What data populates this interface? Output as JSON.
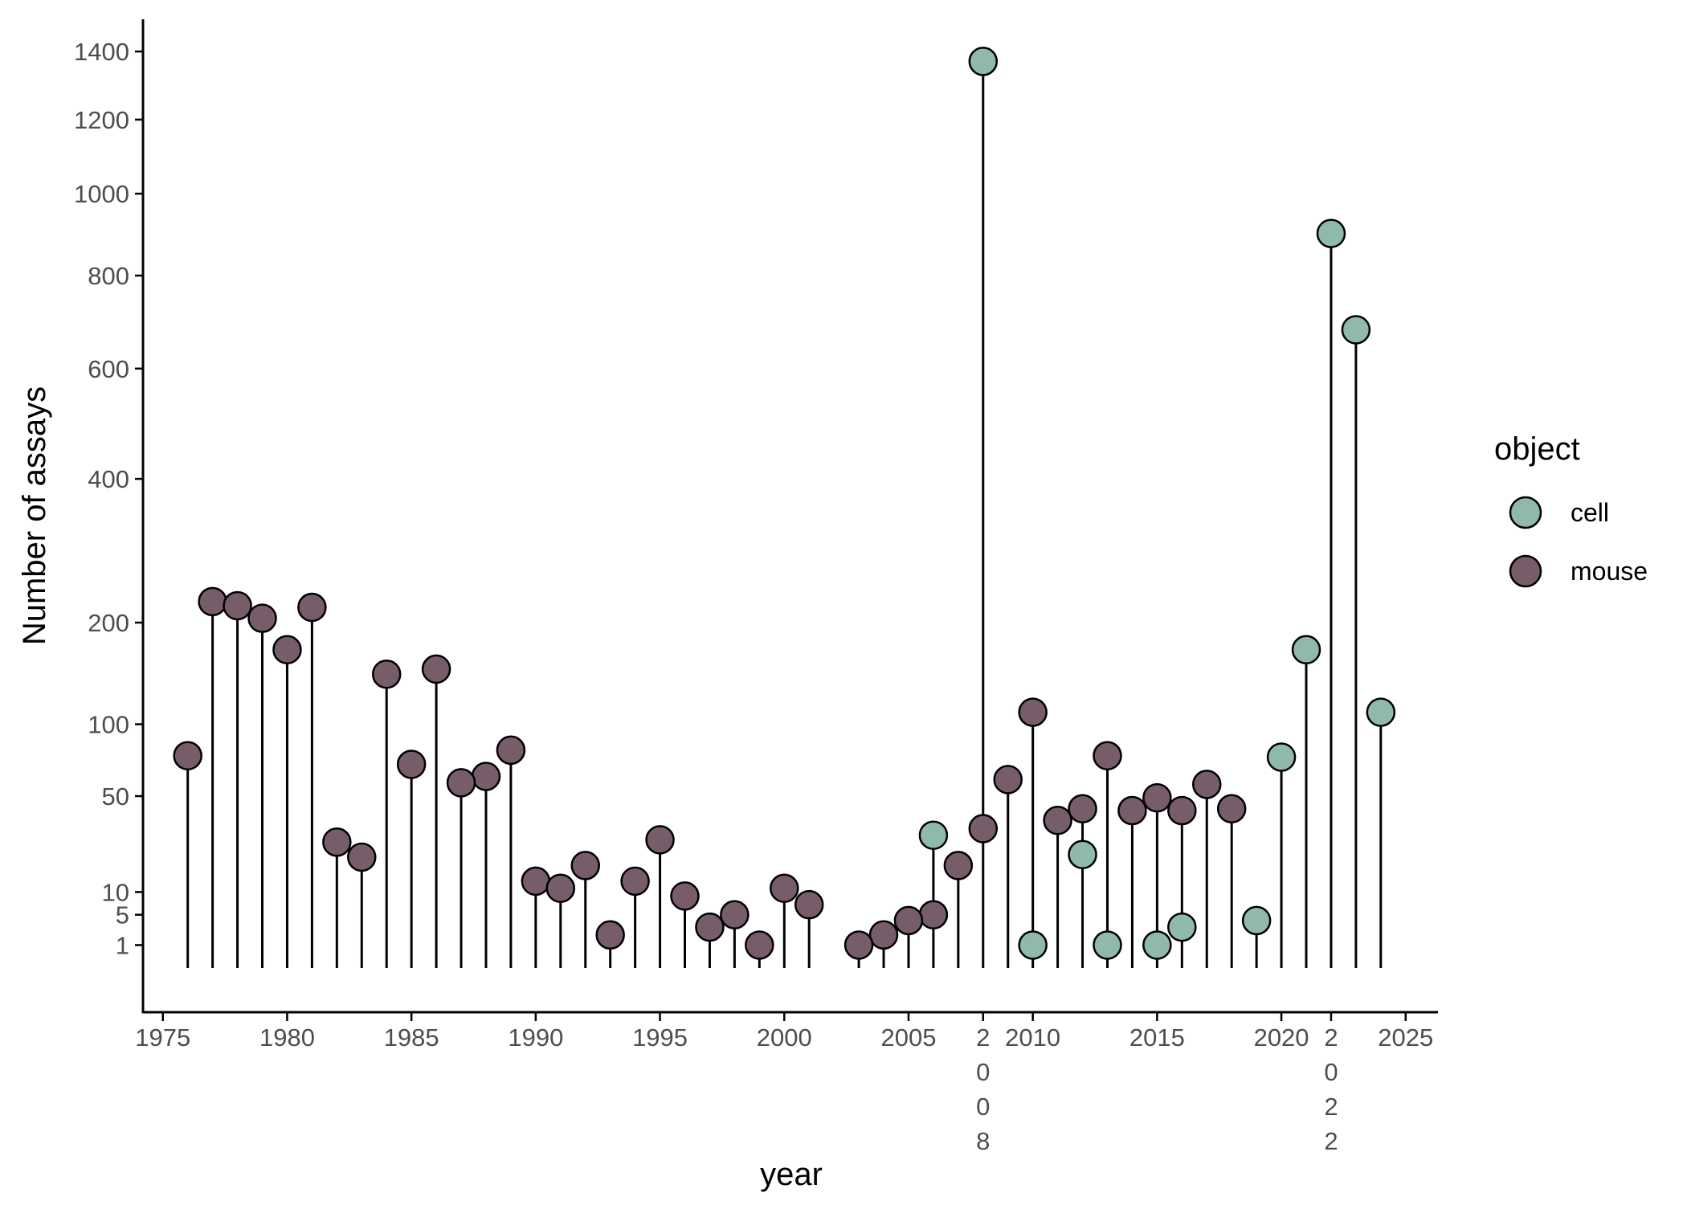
{
  "chart_data": {
    "type": "lollipop",
    "xlabel": "year",
    "ylabel": "Number of assays",
    "x_ticks": [
      "1975",
      "1980",
      "1985",
      "1990",
      "1995",
      "2000",
      "2005",
      "2008",
      "2010",
      "2015",
      "2020",
      "2022",
      "2025"
    ],
    "y_ticks": [
      "1",
      "5",
      "10",
      "50",
      "100",
      "200",
      "400",
      "600",
      "800",
      "1000",
      "1200",
      "1400"
    ],
    "y_scale": "sqrt",
    "ylim": [
      0,
      1500
    ],
    "xlim": [
      1974.2,
      2026.3
    ],
    "legend": {
      "title": "object",
      "position": "right"
    },
    "series": [
      {
        "name": "cell",
        "color": "#8fb9a8",
        "points": [
          {
            "x": 2006,
            "y": 30
          },
          {
            "x": 2008,
            "y": 1370
          },
          {
            "x": 2010,
            "y": 1
          },
          {
            "x": 2012,
            "y": 22
          },
          {
            "x": 2013,
            "y": 1
          },
          {
            "x": 2015,
            "y": 1
          },
          {
            "x": 2016,
            "y": 3
          },
          {
            "x": 2019,
            "y": 4
          },
          {
            "x": 2020,
            "y": 75
          },
          {
            "x": 2021,
            "y": 170
          },
          {
            "x": 2022,
            "y": 900
          },
          {
            "x": 2023,
            "y": 680
          },
          {
            "x": 2024,
            "y": 110
          }
        ]
      },
      {
        "name": "mouse",
        "color": "#765d69",
        "points": [
          {
            "x": 1976,
            "y": 76
          },
          {
            "x": 1977,
            "y": 225
          },
          {
            "x": 1978,
            "y": 220
          },
          {
            "x": 1979,
            "y": 205
          },
          {
            "x": 1980,
            "y": 170
          },
          {
            "x": 1981,
            "y": 218
          },
          {
            "x": 1982,
            "y": 27
          },
          {
            "x": 1983,
            "y": 21
          },
          {
            "x": 1984,
            "y": 145
          },
          {
            "x": 1985,
            "y": 70
          },
          {
            "x": 1986,
            "y": 150
          },
          {
            "x": 1987,
            "y": 58
          },
          {
            "x": 1988,
            "y": 62
          },
          {
            "x": 1989,
            "y": 80
          },
          {
            "x": 1990,
            "y": 13
          },
          {
            "x": 1991,
            "y": 11
          },
          {
            "x": 1992,
            "y": 18
          },
          {
            "x": 1993,
            "y": 2
          },
          {
            "x": 1994,
            "y": 13
          },
          {
            "x": 1995,
            "y": 28
          },
          {
            "x": 1996,
            "y": 9
          },
          {
            "x": 1997,
            "y": 3
          },
          {
            "x": 1998,
            "y": 5
          },
          {
            "x": 1999,
            "y": 1
          },
          {
            "x": 2000,
            "y": 11
          },
          {
            "x": 2001,
            "y": 7
          },
          {
            "x": 2003,
            "y": 1
          },
          {
            "x": 2004,
            "y": 2
          },
          {
            "x": 2005,
            "y": 4
          },
          {
            "x": 2006,
            "y": 5
          },
          {
            "x": 2007,
            "y": 18
          },
          {
            "x": 2008,
            "y": 33
          },
          {
            "x": 2009,
            "y": 60
          },
          {
            "x": 2010,
            "y": 110
          },
          {
            "x": 2011,
            "y": 37
          },
          {
            "x": 2012,
            "y": 43
          },
          {
            "x": 2013,
            "y": 76
          },
          {
            "x": 2014,
            "y": 42
          },
          {
            "x": 2015,
            "y": 49
          },
          {
            "x": 2016,
            "y": 42
          },
          {
            "x": 2017,
            "y": 57
          },
          {
            "x": 2018,
            "y": 43
          }
        ]
      }
    ]
  }
}
